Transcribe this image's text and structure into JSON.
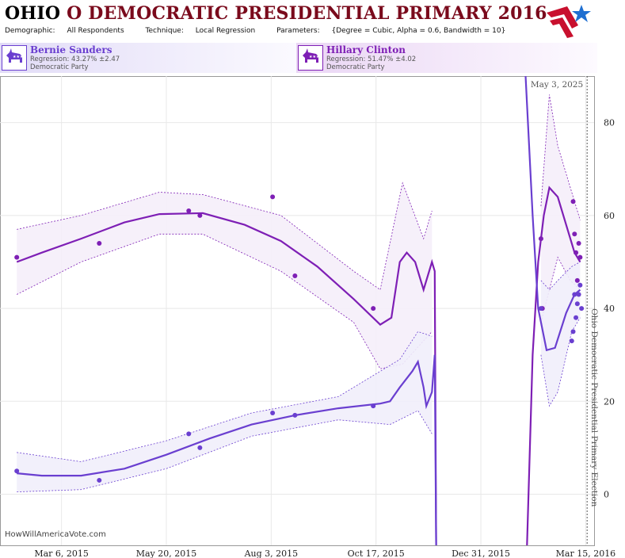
{
  "header": {
    "state": "OHIO",
    "title_rest": "O DEMOCRATIC PRESIDENTIAL PRIMARY 2016",
    "demographic_label": "Demographic:",
    "demographic_value": "All Respondents",
    "technique_label": "Technique:",
    "technique_value": "Local Regression",
    "parameters_label": "Parameters:",
    "parameters_value": "{Degree = Cubic, Alpha = 0.6, Bandwidth = 10}"
  },
  "colors": {
    "sanders": "#6a3fd0",
    "clinton": "#7e1fb5",
    "sanders_band": "#f1eefb",
    "clinton_band": "#f5eefa",
    "logo_red": "#c8102e",
    "logo_blue": "#1f6fd1",
    "title_red": "#7a0a1c"
  },
  "candidates": [
    {
      "name": "Bernie Sanders",
      "regression": "Regression: 43.27% ±2.47",
      "party": "Democratic Party",
      "icon": "donkey-icon"
    },
    {
      "name": "Hillary Clinton",
      "regression": "Regression: 51.47% ±4.02",
      "party": "Democratic Party",
      "icon": "donkey-icon"
    }
  ],
  "watermark": "HowWillAmericaVote.com",
  "chart_data": {
    "type": "line",
    "xlabel": "",
    "ylabel": "",
    "x_domain": [
      "2015-01-21",
      "2016-03-21"
    ],
    "ylim": [
      -11,
      90
    ],
    "x_ticks": [
      "Mar 6, 2015",
      "May 20, 2015",
      "Aug 3, 2015",
      "Oct 17, 2015",
      "Dec 31, 2015",
      "Mar 15, 2016"
    ],
    "y_ticks": [
      0,
      20,
      40,
      60,
      80
    ],
    "annotations": {
      "date_marker": "2016-03-16",
      "date_label": "May 3, 2025",
      "election_label": "Ohio Democratic Presidential Primary Election"
    },
    "series": [
      {
        "name": "Hillary Clinton",
        "color": "#7e1fb5",
        "points": [
          [
            "2015-02-02",
            51
          ],
          [
            "2015-04-02",
            54
          ],
          [
            "2015-06-05",
            61
          ],
          [
            "2015-06-13",
            60
          ],
          [
            "2015-08-04",
            64
          ],
          [
            "2015-08-20",
            47
          ],
          [
            "2015-10-15",
            40
          ],
          [
            "2016-02-12",
            55
          ],
          [
            "2016-02-13",
            40
          ],
          [
            "2016-03-06",
            63
          ],
          [
            "2016-03-07",
            56
          ],
          [
            "2016-03-08",
            52
          ],
          [
            "2016-03-09",
            46
          ],
          [
            "2016-03-10",
            54
          ],
          [
            "2016-03-11",
            51
          ]
        ],
        "fit": [
          [
            "2015-02-02",
            50
          ],
          [
            "2015-02-20",
            52
          ],
          [
            "2015-03-20",
            55
          ],
          [
            "2015-04-20",
            58.5
          ],
          [
            "2015-05-15",
            60.3
          ],
          [
            "2015-06-15",
            60.5
          ],
          [
            "2015-07-15",
            58
          ],
          [
            "2015-08-10",
            54.5
          ],
          [
            "2015-09-05",
            49
          ],
          [
            "2015-10-01",
            42
          ],
          [
            "2015-10-20",
            36.5
          ],
          [
            "2015-10-28",
            38
          ],
          [
            "2015-11-03",
            50
          ],
          [
            "2015-11-08",
            52
          ],
          [
            "2015-11-14",
            50
          ],
          [
            "2015-11-20",
            44
          ],
          [
            "2015-11-26",
            50
          ],
          [
            "2015-11-28",
            48
          ],
          [
            "2015-11-29",
            -11
          ]
        ],
        "fit_post": [
          [
            "2016-02-02",
            -11
          ],
          [
            "2016-02-06",
            30
          ],
          [
            "2016-02-10",
            50
          ],
          [
            "2016-02-14",
            60
          ],
          [
            "2016-02-18",
            66
          ],
          [
            "2016-02-24",
            64
          ],
          [
            "2016-03-01",
            58
          ],
          [
            "2016-03-07",
            52
          ],
          [
            "2016-03-11",
            50
          ]
        ],
        "band_upper": [
          [
            "2015-02-02",
            57
          ],
          [
            "2015-03-20",
            60
          ],
          [
            "2015-05-15",
            65
          ],
          [
            "2015-06-15",
            64.5
          ],
          [
            "2015-08-10",
            60
          ],
          [
            "2015-10-01",
            48
          ],
          [
            "2015-10-20",
            44
          ],
          [
            "2015-11-05",
            67
          ],
          [
            "2015-11-20",
            55
          ],
          [
            "2015-11-26",
            61
          ]
        ],
        "band_lower": [
          [
            "2015-02-02",
            43
          ],
          [
            "2015-03-20",
            50
          ],
          [
            "2015-05-15",
            56
          ],
          [
            "2015-06-15",
            56
          ],
          [
            "2015-08-10",
            48
          ],
          [
            "2015-10-01",
            37
          ],
          [
            "2015-10-20",
            27
          ],
          [
            "2015-11-05",
            28
          ],
          [
            "2015-11-20",
            33
          ],
          [
            "2015-11-26",
            35
          ]
        ],
        "band_post_upper": [
          [
            "2016-02-12",
            62
          ],
          [
            "2016-02-18",
            86
          ],
          [
            "2016-02-24",
            75
          ],
          [
            "2016-03-04",
            66
          ],
          [
            "2016-03-11",
            59
          ]
        ],
        "band_post_lower": [
          [
            "2016-02-12",
            37
          ],
          [
            "2016-02-18",
            44
          ],
          [
            "2016-02-24",
            51
          ],
          [
            "2016-03-04",
            46
          ],
          [
            "2016-03-11",
            44
          ]
        ]
      },
      {
        "name": "Bernie Sanders",
        "color": "#6a3fd0",
        "points": [
          [
            "2015-02-02",
            5
          ],
          [
            "2015-04-02",
            3
          ],
          [
            "2015-06-05",
            13
          ],
          [
            "2015-06-13",
            10
          ],
          [
            "2015-08-04",
            17.5
          ],
          [
            "2015-08-20",
            17
          ],
          [
            "2015-10-15",
            19
          ],
          [
            "2016-02-12",
            40
          ],
          [
            "2016-03-05",
            33
          ],
          [
            "2016-03-06",
            35
          ],
          [
            "2016-03-07",
            43
          ],
          [
            "2016-03-08",
            38
          ],
          [
            "2016-03-09",
            41
          ],
          [
            "2016-03-10",
            43
          ],
          [
            "2016-03-11",
            45
          ],
          [
            "2016-03-12",
            40
          ]
        ],
        "fit": [
          [
            "2015-02-02",
            4.5
          ],
          [
            "2015-02-20",
            4
          ],
          [
            "2015-03-20",
            4
          ],
          [
            "2015-04-20",
            5.5
          ],
          [
            "2015-05-20",
            8.5
          ],
          [
            "2015-06-20",
            12
          ],
          [
            "2015-07-20",
            15
          ],
          [
            "2015-08-20",
            17
          ],
          [
            "2015-09-20",
            18.5
          ],
          [
            "2015-10-20",
            19.5
          ],
          [
            "2015-10-27",
            20
          ],
          [
            "2015-11-03",
            23
          ],
          [
            "2015-11-12",
            26.5
          ],
          [
            "2015-11-16",
            28.5
          ],
          [
            "2015-11-20",
            23
          ],
          [
            "2015-11-22",
            19
          ],
          [
            "2015-11-26",
            22
          ],
          [
            "2015-11-28",
            30
          ],
          [
            "2015-11-29",
            -11
          ]
        ],
        "fit_post": [
          [
            "2016-02-01",
            90
          ],
          [
            "2016-02-06",
            60
          ],
          [
            "2016-02-10",
            40
          ],
          [
            "2016-02-16",
            31
          ],
          [
            "2016-02-22",
            31.5
          ],
          [
            "2016-03-01",
            39
          ],
          [
            "2016-03-07",
            43
          ],
          [
            "2016-03-11",
            44
          ]
        ],
        "band_upper": [
          [
            "2015-02-02",
            9
          ],
          [
            "2015-03-20",
            7
          ],
          [
            "2015-05-20",
            11.5
          ],
          [
            "2015-07-20",
            17.5
          ],
          [
            "2015-09-20",
            21
          ],
          [
            "2015-11-03",
            29
          ],
          [
            "2015-11-16",
            35
          ],
          [
            "2015-11-26",
            34
          ]
        ],
        "band_lower": [
          [
            "2015-02-02",
            0.5
          ],
          [
            "2015-03-20",
            1
          ],
          [
            "2015-05-20",
            5.5
          ],
          [
            "2015-07-20",
            12.5
          ],
          [
            "2015-09-20",
            16
          ],
          [
            "2015-10-27",
            15
          ],
          [
            "2015-11-16",
            18
          ],
          [
            "2015-11-26",
            13
          ]
        ],
        "band_post_upper": [
          [
            "2016-02-12",
            46
          ],
          [
            "2016-02-18",
            44
          ],
          [
            "2016-02-24",
            46
          ],
          [
            "2016-03-05",
            49
          ],
          [
            "2016-03-11",
            50
          ]
        ],
        "band_post_lower": [
          [
            "2016-02-12",
            30
          ],
          [
            "2016-02-18",
            19
          ],
          [
            "2016-02-24",
            22
          ],
          [
            "2016-03-05",
            35
          ],
          [
            "2016-03-11",
            38
          ]
        ]
      }
    ]
  }
}
